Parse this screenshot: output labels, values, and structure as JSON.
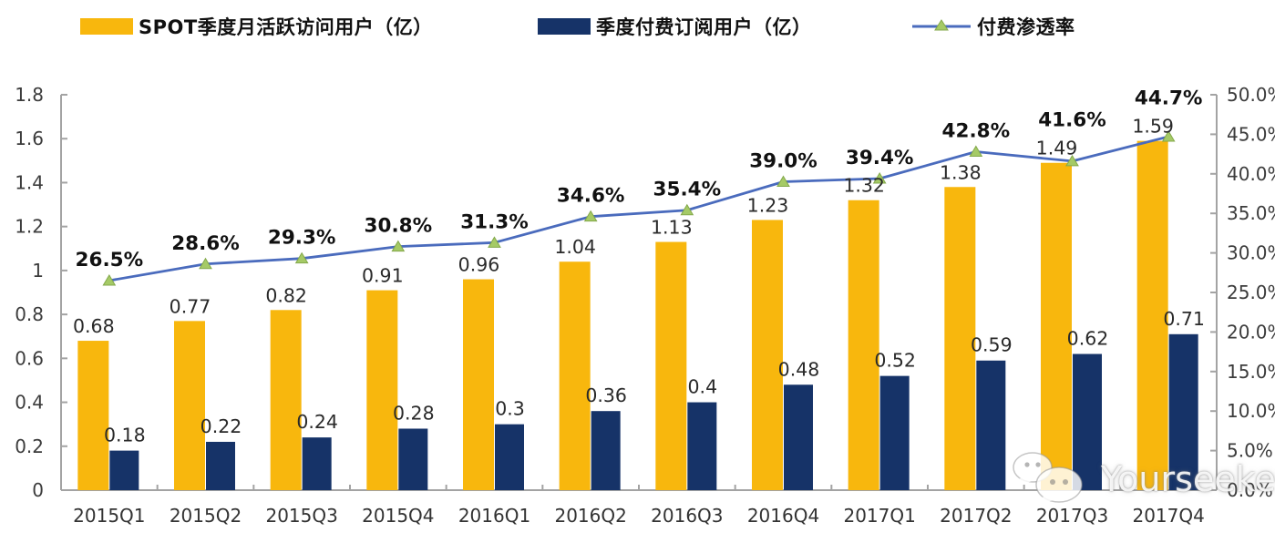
{
  "legend": {
    "mau": {
      "label": "SPOT季度月活跃访问用户（亿）",
      "color": "#F8B70D"
    },
    "subs": {
      "label": "季度付费订阅用户（亿）",
      "color": "#163368"
    },
    "rate": {
      "label": "付费渗透率",
      "line_color": "#4A6BBD",
      "marker_color": "#A5CA66",
      "marker_edge": "#83A84B"
    }
  },
  "watermark": {
    "text": "Yourseeker",
    "icon": "wechat-icon"
  },
  "chart_data": {
    "type": "bar+line",
    "title": "",
    "xlabel": "",
    "ylabel": "",
    "grid": false,
    "legend_position": "top",
    "categories": [
      "2015Q1",
      "2015Q2",
      "2015Q3",
      "2015Q4",
      "2016Q1",
      "2016Q2",
      "2016Q3",
      "2016Q4",
      "2017Q1",
      "2017Q2",
      "2017Q3",
      "2017Q4"
    ],
    "series": [
      {
        "name": "SPOT季度月活跃访问用户（亿）",
        "type": "bar",
        "axis": "left",
        "color": "#F8B70D",
        "values": [
          0.68,
          0.77,
          0.82,
          0.91,
          0.96,
          1.04,
          1.13,
          1.23,
          1.32,
          1.38,
          1.49,
          1.59
        ],
        "labels": [
          "0.68",
          "0.77",
          "0.82",
          "0.91",
          "0.96",
          "1.04",
          "1.13",
          "1.23",
          "1.32",
          "1.38",
          "1.49",
          "1.59"
        ]
      },
      {
        "name": "季度付费订阅用户（亿）",
        "type": "bar",
        "axis": "left",
        "color": "#163368",
        "values": [
          0.18,
          0.22,
          0.24,
          0.28,
          0.3,
          0.36,
          0.4,
          0.48,
          0.52,
          0.59,
          0.62,
          0.71
        ],
        "labels": [
          "0.18",
          "0.22",
          "0.24",
          "0.28",
          "0.3",
          "0.36",
          "0.4",
          "0.48",
          "0.52",
          "0.59",
          "0.62",
          "0.71"
        ]
      },
      {
        "name": "付费渗透率",
        "type": "line",
        "axis": "right",
        "color": "#4A6BBD",
        "marker": "triangle",
        "marker_color": "#A5CA66",
        "marker_edge": "#83A84B",
        "values": [
          26.5,
          28.6,
          29.3,
          30.8,
          31.3,
          34.6,
          35.4,
          39.0,
          39.4,
          42.8,
          41.6,
          44.7
        ],
        "labels": [
          "26.5%",
          "28.6%",
          "29.3%",
          "30.8%",
          "31.3%",
          "34.6%",
          "35.4%",
          "39.0%",
          "39.4%",
          "42.8%",
          "41.6%",
          "44.7%"
        ]
      }
    ],
    "left_axis": {
      "min": 0,
      "max": 1.8,
      "step": 0.2,
      "tick_labels": [
        "0",
        "0.2",
        "0.4",
        "0.6",
        "0.8",
        "1",
        "1.2",
        "1.4",
        "1.6",
        "1.8"
      ]
    },
    "right_axis": {
      "min": 0,
      "max": 50,
      "step": 5,
      "tick_labels": [
        "0.0%",
        "5.0%",
        "10.0%",
        "15.0%",
        "20.0%",
        "25.0%",
        "30.0%",
        "35.0%",
        "40.0%",
        "45.0%",
        "50.0%"
      ]
    }
  }
}
